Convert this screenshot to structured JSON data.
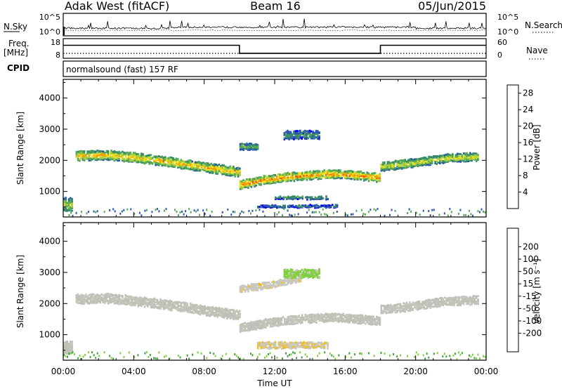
{
  "header": {
    "station": "Adak West (fitACF)",
    "beam": "Beam 16",
    "date": "05/Jun/2015"
  },
  "strips": {
    "nsky_label": "N.Sky",
    "nsky_ticks": [
      "10^5",
      "10^0"
    ],
    "nsearch_label": "N.Search",
    "nsearch_ticks": [
      "10^5",
      "10^0"
    ],
    "freq_label_1": "Freq.",
    "freq_label_2": "[MHz]",
    "freq_ticks": [
      "18",
      "8"
    ],
    "nave_label": "Nave",
    "nave_ticks": [
      "60",
      "0"
    ],
    "cpid_label": "CPID",
    "cpid_value": "normalsound (fast) 157 RF"
  },
  "colors": {
    "power_scale": [
      "#0000ee",
      "#2a55b0",
      "#3a8a6a",
      "#55aa55",
      "#a8d040",
      "#f0e020",
      "#f0a000",
      "#ee5500",
      "#dd0000"
    ],
    "velocity_scale": [
      "#dd0000",
      "#ee4400",
      "#f08000",
      "#f0c020",
      "#c8c8c0",
      "#c8c8c0",
      "#80d040",
      "#40a040",
      "#2a8060",
      "#2a50a0",
      "#0000cc"
    ],
    "ground_scatter": "#c0c0b8"
  },
  "chart_data": [
    {
      "type": "heatmap",
      "name": "power",
      "xlabel": "",
      "ylabel": "Slant Range [km]",
      "xlim": [
        0,
        24
      ],
      "ylim": [
        180,
        4600
      ],
      "yticks": [
        "1000",
        "2000",
        "3000",
        "4000"
      ],
      "colorbar": {
        "label": "Power [dB]",
        "ticks": [
          "4",
          "8",
          "12",
          "16",
          "20",
          "24",
          "28"
        ],
        "range": [
          0,
          30
        ]
      },
      "echo_bands": [
        {
          "start": 0.0,
          "end": 0.5,
          "range_center": 620,
          "range_width": 400,
          "value": 14
        },
        {
          "start": 0.7,
          "end": 10.0,
          "range_center": [
            2180,
            2200,
            2100,
            1960,
            1800,
            1650
          ],
          "range_width": 280,
          "value": 18
        },
        {
          "start": 10.0,
          "end": 18.0,
          "range_center": [
            1250,
            1400,
            1500,
            1560,
            1600,
            1550,
            1480
          ],
          "range_width": 260,
          "value": 20
        },
        {
          "start": 10.0,
          "end": 11.0,
          "range_center": 2480,
          "range_width": 200,
          "value": 10
        },
        {
          "start": 12.5,
          "end": 14.5,
          "range_center": 2850,
          "range_width": 250,
          "value": 8
        },
        {
          "start": 18.0,
          "end": 23.5,
          "range_center": [
            1830,
            1950,
            2100,
            2150
          ],
          "range_width": 250,
          "value": 15
        },
        {
          "start": 12.0,
          "end": 15.0,
          "range_center": 840,
          "range_width": 90,
          "value": 9
        },
        {
          "start": 11.0,
          "end": 15.5,
          "range_center": 560,
          "range_width": 70,
          "value": 7
        }
      ]
    },
    {
      "type": "heatmap",
      "name": "velocity",
      "xlabel": "Time UT",
      "ylabel": "Slant Range [km]",
      "xlim": [
        0,
        24
      ],
      "ylim": [
        180,
        4600
      ],
      "xticks": [
        "00:00",
        "04:00",
        "08:00",
        "12:00",
        "16:00",
        "20:00",
        "00:00"
      ],
      "yticks": [
        "1000",
        "2000",
        "3000",
        "4000"
      ],
      "colorbar": {
        "label": "Velocity [m s⁻¹]",
        "ticks": [
          "-200",
          "-100",
          "-50",
          "-15",
          "15",
          "50",
          "100",
          "200"
        ]
      },
      "echo_bands": [
        {
          "start": 0.0,
          "end": 0.5,
          "range_center": 620,
          "range_width": 400,
          "value": 0
        },
        {
          "start": 0.7,
          "end": 10.0,
          "range_center": [
            2180,
            2200,
            2100,
            1960,
            1800,
            1650
          ],
          "range_width": 280,
          "value": 0
        },
        {
          "start": 10.0,
          "end": 18.0,
          "range_center": [
            1250,
            1400,
            1500,
            1560,
            1600,
            1550,
            1480
          ],
          "range_width": 260,
          "value": 0
        },
        {
          "start": 10.0,
          "end": 13.5,
          "range_center": [
            2500,
            2650,
            2850
          ],
          "range_width": 200,
          "value": -60
        },
        {
          "start": 12.5,
          "end": 14.5,
          "range_center": 3000,
          "range_width": 250,
          "value": 40
        },
        {
          "start": 18.0,
          "end": 23.5,
          "range_center": [
            1830,
            1950,
            2100,
            2150
          ],
          "range_width": 250,
          "value": 0
        },
        {
          "start": 11.0,
          "end": 15.0,
          "range_center": 700,
          "range_width": 200,
          "value": -70
        }
      ]
    }
  ],
  "strip_data": {
    "freq_segments": [
      {
        "start": 0,
        "end": 10.0,
        "value": 15.5
      },
      {
        "start": 10.0,
        "end": 18.0,
        "value": 10.3
      },
      {
        "start": 18.0,
        "end": 24,
        "value": 15.5
      }
    ]
  }
}
